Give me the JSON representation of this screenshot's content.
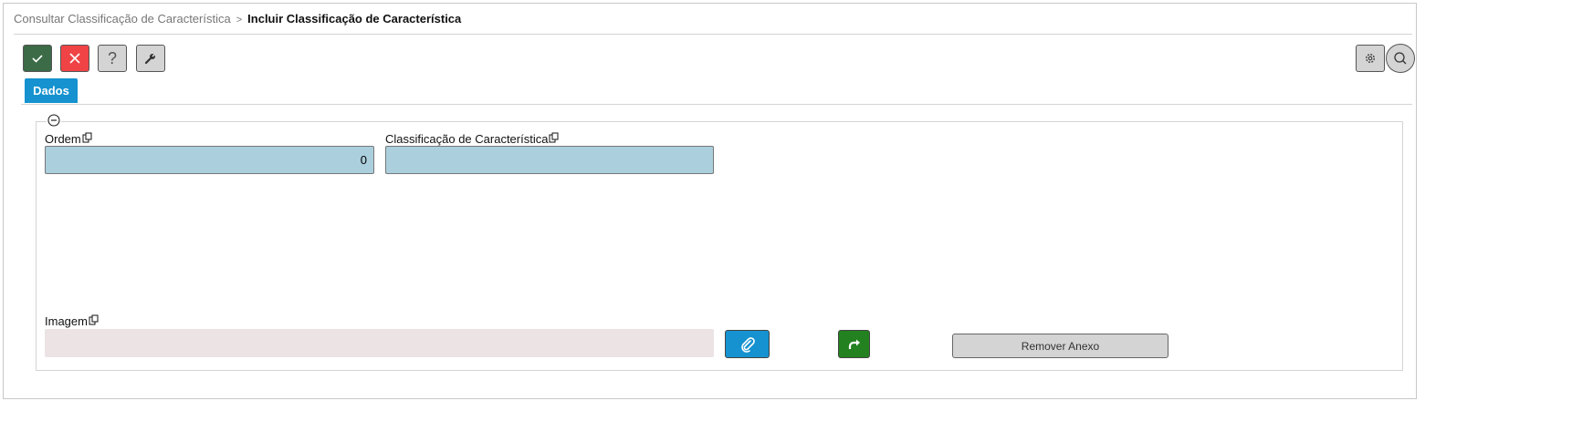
{
  "breadcrumb": {
    "parent": "Consultar Classificação de Característica",
    "separator": ">",
    "current": "Incluir Classificação de Característica"
  },
  "toolbar": {
    "confirm": "check-icon",
    "cancel": "close-icon",
    "help": "?",
    "tools": "wrench-icon",
    "settings": "gear-icon",
    "search": "search-icon"
  },
  "tabs": [
    {
      "label": "Dados",
      "active": true
    }
  ],
  "form": {
    "ordem": {
      "label": "Ordem",
      "value": "0"
    },
    "classificacao": {
      "label": "Classificação de Característica",
      "value": ""
    },
    "imagem": {
      "label": "Imagem",
      "value": ""
    },
    "remove_label": "Remover Anexo"
  },
  "colors": {
    "confirm": "#3b6b47",
    "cancel": "#f04346",
    "tab": "#1592cf",
    "input": "#abcfdc",
    "image_input": "#ebe3e4",
    "attach": "#1592cf",
    "go": "#23821f"
  }
}
